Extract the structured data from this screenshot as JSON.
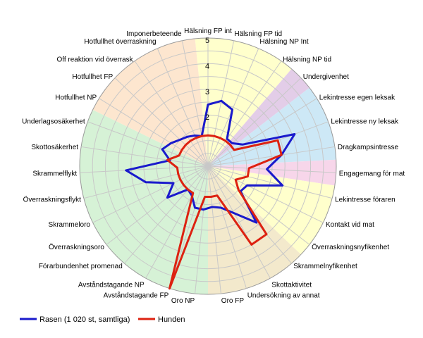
{
  "chart_data": {
    "type": "radar",
    "title": "",
    "rmax": 5,
    "radial_ticks": [
      "2",
      "3",
      "4",
      "5"
    ],
    "radial_tick_values": [
      2,
      3,
      4,
      5
    ],
    "categories": [
      "Hälsning FP int",
      "Hälsning FP tid",
      "Hälsning NP Int",
      "Hälsning NP tid",
      "Undergivenhet",
      "Lekintresse egen leksak",
      "Lekintresse ny leksak",
      "Dragkampsintresse",
      "Engagemang för mat",
      "Lekintresse föraren",
      "Kontakt vid mat",
      "Överraskningsnyfikenhet",
      "Skrammelnyfikenhet",
      "Skottaktivitet",
      "Undersökning av annat",
      "Oro FP",
      "Oro NP",
      "Avståndstagande FP",
      "Avståndstagande NP",
      "Förarbundenhet promenad",
      "Överraskningsoro",
      "Skrammeloro",
      "Överraskningsflykt",
      "Skrammelflykt",
      "Skottosäkerhet",
      "Underlagsosäkerhet",
      "Hotfullhet NP",
      "Hotfullhet FP",
      "Off reaktion vid överrask",
      "Hotfullhet överraskning",
      "Imponerbeteende"
    ],
    "series": [
      {
        "name": "Rasen (1 020 st, samtliga)",
        "color": "#1a1acc",
        "values": [
          2.4,
          2.6,
          2.4,
          1.3,
          1.3,
          1.6,
          3.6,
          2.9,
          2.3,
          3.0,
          1.7,
          1.6,
          2.9,
          2.1,
          1.7,
          1.6,
          1.7,
          1.7,
          1.3,
          1.2,
          2.0,
          1.5,
          2.5,
          3.2,
          1.5,
          1.9,
          1.7,
          1.5,
          1.4,
          1.3,
          1.2
        ]
      },
      {
        "name": "Hunden",
        "color": "#dd2211",
        "values": [
          1.2,
          1.2,
          1.2,
          1.2,
          1.2,
          1.2,
          2.9,
          2.9,
          1.6,
          1.6,
          1.2,
          1.5,
          3.5,
          3.5,
          1.2,
          1.2,
          1.2,
          5.0,
          1.2,
          1.2,
          1.2,
          1.2,
          1.2,
          1.2,
          1.6,
          1.2,
          1.2,
          1.2,
          1.2,
          1.2,
          1.2
        ]
      }
    ],
    "sectors": [
      {
        "from": 0,
        "to": 3,
        "color": "#ffffcc"
      },
      {
        "from": 4,
        "to": 4,
        "color": "#e3cde8"
      },
      {
        "from": 5,
        "to": 7,
        "color": "#cde8f6"
      },
      {
        "from": 8,
        "to": 8,
        "color": "#f7d6ea"
      },
      {
        "from": 9,
        "to": 11,
        "color": "#ffffcc"
      },
      {
        "from": 12,
        "to": 15,
        "color": "#f3e9cc"
      },
      {
        "from": 16,
        "to": 25,
        "color": "#d6f2d6"
      },
      {
        "from": 26,
        "to": 30,
        "color": "#fde6cf"
      }
    ],
    "legend_position": "bottom-left",
    "grid": true
  }
}
